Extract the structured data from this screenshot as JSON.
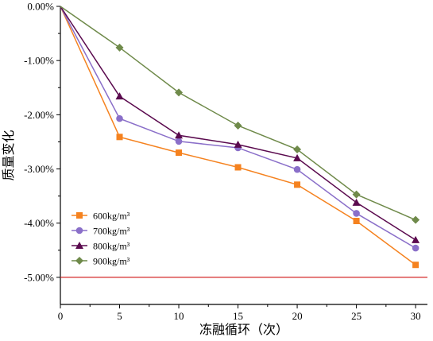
{
  "chart_data": {
    "type": "line",
    "title": "",
    "xlabel": "冻融循环（次）",
    "ylabel": "质量变化",
    "x": [
      0,
      5,
      10,
      15,
      20,
      25,
      30
    ],
    "xlim": [
      0,
      31
    ],
    "ylim": [
      -5.5,
      0
    ],
    "x_ticks": [
      0,
      5,
      10,
      15,
      20,
      25,
      30
    ],
    "x_tick_labels": [
      "0",
      "5",
      "10",
      "15",
      "20",
      "25",
      "30"
    ],
    "y_ticks": [
      0,
      -1,
      -2,
      -3,
      -4,
      -5
    ],
    "y_tick_labels": [
      "0.00%",
      "-1.00%",
      "-2.00%",
      "-3.00%",
      "-4.00%",
      "-5.00%"
    ],
    "grid": false,
    "legend_position": "lower-left",
    "series": [
      {
        "name": "600kg/m³",
        "marker": "square",
        "color": "#f5821f",
        "values": [
          0,
          -2.41,
          -2.7,
          -2.97,
          -3.29,
          -3.96,
          -4.77
        ]
      },
      {
        "name": "700kg/m³",
        "marker": "circle",
        "color": "#8a6fc9",
        "values": [
          0,
          -2.07,
          -2.49,
          -2.61,
          -3.01,
          -3.82,
          -4.46
        ]
      },
      {
        "name": "800kg/m³",
        "marker": "triangle",
        "color": "#5a0a4e",
        "values": [
          0,
          -1.66,
          -2.38,
          -2.55,
          -2.8,
          -3.62,
          -4.31
        ]
      },
      {
        "name": "900kg/m³",
        "marker": "diamond",
        "color": "#6f8a4a",
        "values": [
          0,
          -0.76,
          -1.59,
          -2.2,
          -2.64,
          -3.47,
          -3.94
        ]
      }
    ],
    "reference_lines": [
      {
        "axis": "y",
        "value": -5,
        "color": "#d42a2a"
      }
    ]
  }
}
